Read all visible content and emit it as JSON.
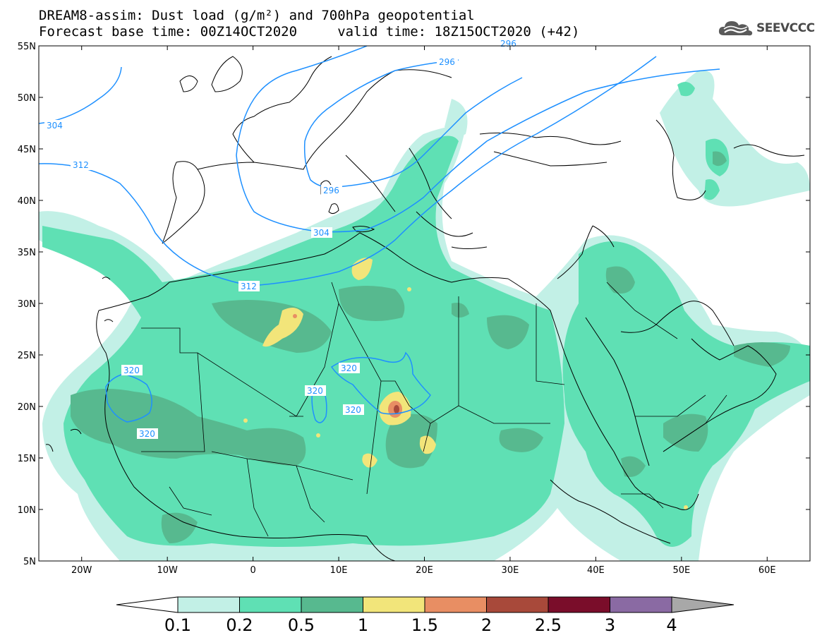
{
  "header": {
    "line1": "DREAM8-assim: Dust load (g/m²) and 700hPa geopotential",
    "line2": "Forecast base time: 00Z14OCT2020     valid time: 18Z15OCT2020 (+42)",
    "logo_text": "SEEVCCC"
  },
  "map": {
    "lon_range": [
      -25,
      65
    ],
    "lat_range": [
      5,
      55
    ],
    "lon_ticks": [
      {
        "lon": -20,
        "label": "20W"
      },
      {
        "lon": -10,
        "label": "10W"
      },
      {
        "lon": 0,
        "label": "0"
      },
      {
        "lon": 10,
        "label": "10E"
      },
      {
        "lon": 20,
        "label": "20E"
      },
      {
        "lon": 30,
        "label": "30E"
      },
      {
        "lon": 40,
        "label": "40E"
      },
      {
        "lon": 50,
        "label": "50E"
      },
      {
        "lon": 60,
        "label": "60E"
      }
    ],
    "lat_ticks": [
      {
        "lat": 55,
        "label": "55N"
      },
      {
        "lat": 50,
        "label": "50N"
      },
      {
        "lat": 45,
        "label": "45N"
      },
      {
        "lat": 40,
        "label": "40N"
      },
      {
        "lat": 35,
        "label": "35N"
      },
      {
        "lat": 30,
        "label": "30N"
      },
      {
        "lat": 25,
        "label": "25N"
      },
      {
        "lat": 20,
        "label": "20N"
      },
      {
        "lat": 15,
        "label": "15N"
      },
      {
        "lat": 10,
        "label": "10N"
      },
      {
        "lat": 5,
        "label": "5N"
      }
    ],
    "contour_labels": [
      "304",
      "312",
      "296",
      "296",
      "304",
      "312",
      "320",
      "320",
      "320",
      "320",
      "320",
      "296"
    ]
  },
  "colorbar": {
    "labels": [
      "0.1",
      "0.2",
      "0.5",
      "1",
      "1.5",
      "2",
      "2.5",
      "3",
      "4"
    ],
    "colors": [
      "#c2f0e6",
      "#5fe0b4",
      "#57b98f",
      "#f2e57a",
      "#e88e63",
      "#a8493a",
      "#7a0d2a",
      "#8a6aa3"
    ]
  },
  "colors": {
    "contour": "#1e90ff",
    "dust_01": "#c2f0e6",
    "dust_02": "#5fe0b4",
    "dust_05": "#57b98f",
    "dust_1": "#f2e57a",
    "dust_15": "#e88e63",
    "dust_2": "#a8493a"
  }
}
